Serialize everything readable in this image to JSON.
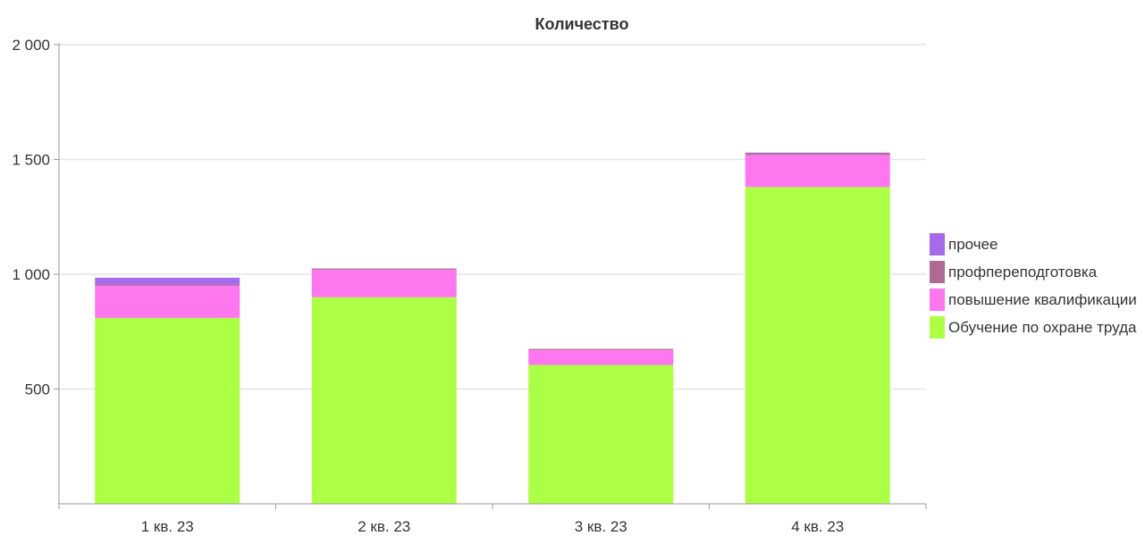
{
  "chart_data": {
    "type": "bar",
    "stacked": true,
    "title": "Количество",
    "categories": [
      "1 кв. 23",
      "2 кв. 23",
      "3 кв. 23",
      "4 кв. 23"
    ],
    "ylim": [
      0,
      2000
    ],
    "yticks": [
      500,
      1000,
      1500,
      2000
    ],
    "ytick_labels": [
      "500",
      "1 000",
      "1 500",
      "2 000"
    ],
    "grid": true,
    "legend_position": "right",
    "series": [
      {
        "name": "Обучение по охране труда",
        "color": "#adff45",
        "values": [
          810,
          900,
          605,
          1380
        ]
      },
      {
        "name": "повышение квалификации",
        "color": "#ff77ee",
        "values": [
          140,
          120,
          65,
          140
        ]
      },
      {
        "name": "профпереподготовка",
        "color": "#b06a91",
        "values": [
          5,
          5,
          5,
          7
        ]
      },
      {
        "name": "прочее",
        "color": "#a66bea",
        "values": [
          30,
          0,
          0,
          3
        ]
      }
    ]
  }
}
